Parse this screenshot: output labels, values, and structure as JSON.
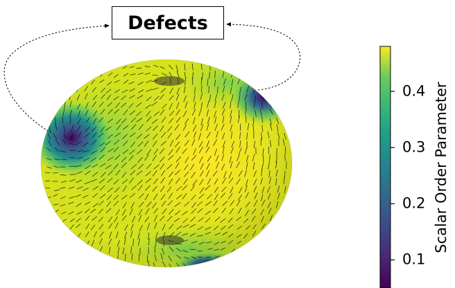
{
  "label": "Defects",
  "colorbar": {
    "title": "Scalar Order Parameter",
    "ticks": [
      {
        "value": 0.4,
        "label": "0.4"
      },
      {
        "value": 0.3,
        "label": "0.3"
      },
      {
        "value": 0.2,
        "label": "0.2"
      },
      {
        "value": 0.1,
        "label": "0.1"
      }
    ],
    "range": [
      0.05,
      0.48
    ],
    "colormap": "viridis"
  },
  "colors": {
    "sphere_base": "#e6e418",
    "director_lines": "#111111",
    "defect_core": "#3b0f4f"
  }
}
